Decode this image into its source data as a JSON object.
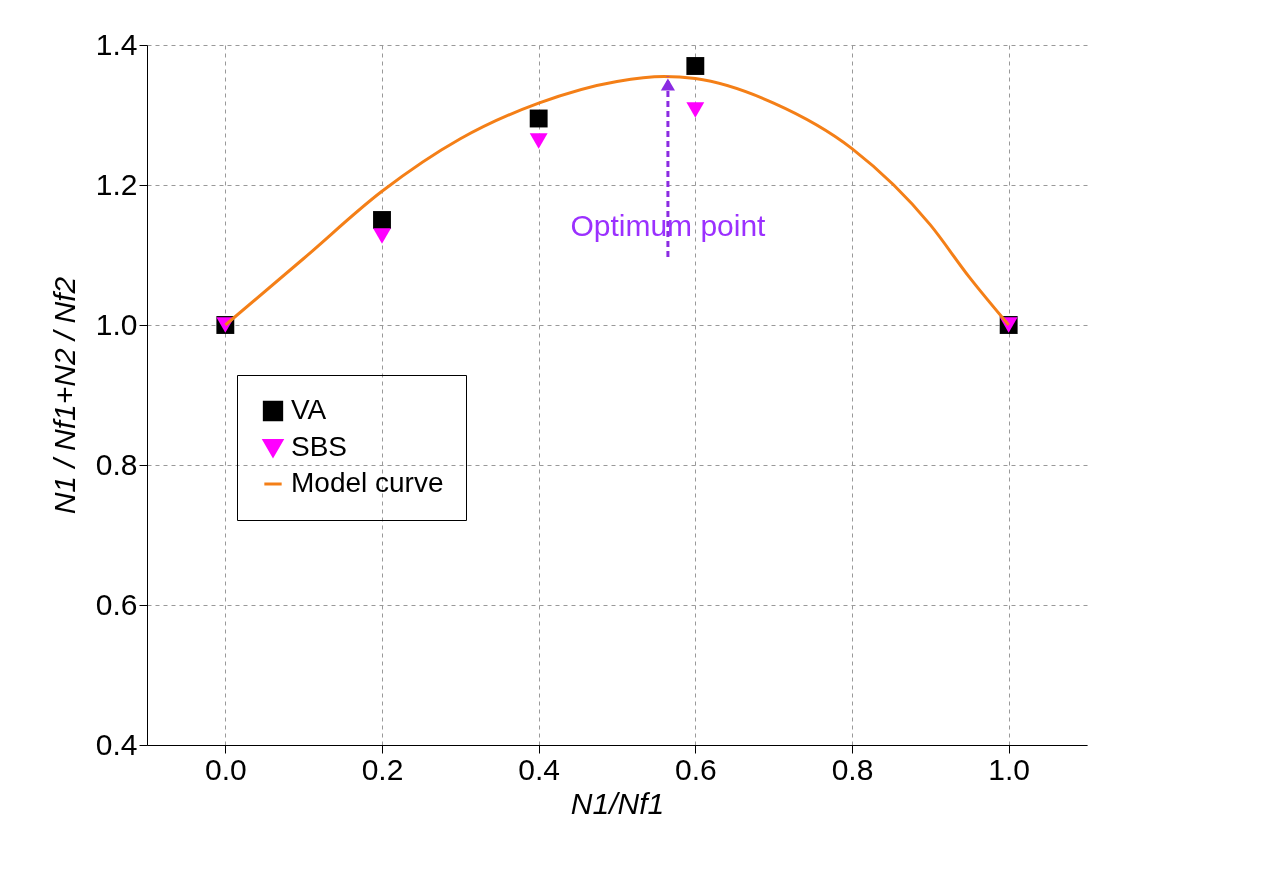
{
  "chart_data": {
    "type": "scatter",
    "xlabel": "N1/Nf1",
    "ylabel": "N1 / Nf1+N2 / Nf2",
    "xlim": [
      -0.1,
      1.1
    ],
    "xticks": [
      {
        "value": 0,
        "label": "0.0"
      },
      0.2,
      0.4,
      0.6,
      0.8,
      {
        "value": 1,
        "label": "1.0"
      }
    ],
    "ylim": [
      0.4,
      1.4
    ],
    "yticks": [
      0.4,
      0.6,
      0.8,
      {
        "value": 1,
        "label": "1.0"
      },
      1.2,
      1.4
    ],
    "grid": true,
    "legend": "left",
    "series": [
      {
        "name": "VA",
        "marker": "square",
        "color": "#000000",
        "x": [
          0.0,
          0.2,
          0.4,
          0.6,
          1.0
        ],
        "values": [
          1.0,
          1.15,
          1.295,
          1.37,
          1.0
        ]
      },
      {
        "name": "SBS",
        "marker": "triangle-down",
        "color": "#ff00ff",
        "x": [
          0.0,
          0.2,
          0.4,
          0.6,
          1.0
        ],
        "values": [
          1.0,
          1.127,
          1.263,
          1.307,
          1.0
        ]
      },
      {
        "name": "Model curve",
        "type": "line",
        "color": "#f47f17",
        "x": [
          0.0,
          0.1,
          0.2,
          0.3,
          0.4,
          0.5,
          0.56,
          0.6,
          0.7,
          0.8,
          0.9,
          0.95,
          1.0
        ],
        "values": [
          1.0,
          1.095,
          1.191,
          1.266,
          1.317,
          1.348,
          1.355,
          1.352,
          1.317,
          1.252,
          1.143,
          1.068,
          1.0
        ]
      }
    ],
    "annotations": [
      {
        "text": "Optimum point",
        "x": 0.565,
        "y": 1.355
      }
    ]
  }
}
